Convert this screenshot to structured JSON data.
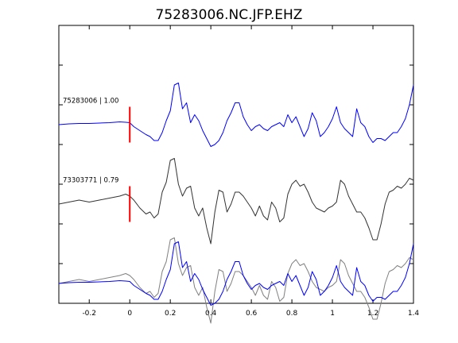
{
  "chart_data": {
    "type": "line",
    "title": "75283006.NC.JFP.EHZ",
    "xlabel": "",
    "ylabel": "",
    "xlim": [
      -0.35,
      1.4
    ],
    "xticks": [
      -0.2,
      0,
      0.2,
      0.4,
      0.6,
      0.8,
      1,
      1.2,
      1.4
    ],
    "xtick_labels": [
      "-0.2",
      "0",
      "0.2",
      "0.4",
      "0.6",
      "0.8",
      "1",
      "1.2",
      "1.4"
    ],
    "ylim": [
      -4.5,
      2.5
    ],
    "yticks": [
      -3.5,
      -2.5,
      -1.5,
      -0.5,
      0.5,
      1.5
    ],
    "grid": false,
    "pick_time": 0,
    "pick_color": "#ff0000",
    "panels": [
      {
        "offset": 0,
        "label": "75283006 | 1.00",
        "series": [
          {
            "name": "75283006",
            "color": "#0000ff",
            "x": [
              -0.35,
              -0.3,
              -0.25,
              -0.2,
              -0.15,
              -0.1,
              -0.05,
              -0.02,
              0.0,
              0.02,
              0.05,
              0.08,
              0.1,
              0.12,
              0.14,
              0.16,
              0.18,
              0.2,
              0.22,
              0.24,
              0.26,
              0.28,
              0.3,
              0.32,
              0.34,
              0.36,
              0.38,
              0.4,
              0.42,
              0.44,
              0.46,
              0.48,
              0.5,
              0.52,
              0.54,
              0.56,
              0.58,
              0.6,
              0.62,
              0.64,
              0.66,
              0.68,
              0.7,
              0.72,
              0.74,
              0.76,
              0.78,
              0.8,
              0.82,
              0.84,
              0.86,
              0.88,
              0.9,
              0.92,
              0.94,
              0.96,
              0.98,
              1.0,
              1.02,
              1.04,
              1.06,
              1.08,
              1.1,
              1.12,
              1.14,
              1.16,
              1.18,
              1.2,
              1.22,
              1.24,
              1.26,
              1.28,
              1.3,
              1.32,
              1.34,
              1.36,
              1.38,
              1.4
            ],
            "y": [
              0.0,
              0.02,
              0.03,
              0.03,
              0.04,
              0.05,
              0.07,
              0.06,
              0.05,
              -0.05,
              -0.15,
              -0.25,
              -0.3,
              -0.4,
              -0.4,
              -0.2,
              0.1,
              0.35,
              1.0,
              1.05,
              0.4,
              0.55,
              0.05,
              0.25,
              0.1,
              -0.15,
              -0.35,
              -0.55,
              -0.5,
              -0.4,
              -0.2,
              0.1,
              0.3,
              0.55,
              0.55,
              0.2,
              0.0,
              -0.15,
              -0.05,
              0.0,
              -0.1,
              -0.15,
              -0.05,
              0.0,
              0.05,
              -0.05,
              0.25,
              0.05,
              0.2,
              -0.05,
              -0.3,
              -0.1,
              0.3,
              0.1,
              -0.3,
              -0.2,
              -0.05,
              0.15,
              0.45,
              0.05,
              -0.1,
              -0.2,
              -0.3,
              0.4,
              0.05,
              -0.05,
              -0.3,
              -0.45,
              -0.35,
              -0.35,
              -0.4,
              -0.3,
              -0.2,
              -0.2,
              -0.05,
              0.15,
              0.5,
              1.0
            ]
          }
        ]
      },
      {
        "offset": -2,
        "label": "73303771 | 0.79",
        "series": [
          {
            "name": "73303771",
            "color": "#333333",
            "x": [
              -0.35,
              -0.3,
              -0.25,
              -0.2,
              -0.15,
              -0.1,
              -0.05,
              -0.02,
              0.0,
              0.02,
              0.05,
              0.08,
              0.1,
              0.12,
              0.14,
              0.16,
              0.18,
              0.2,
              0.22,
              0.24,
              0.26,
              0.28,
              0.3,
              0.32,
              0.34,
              0.36,
              0.38,
              0.4,
              0.42,
              0.44,
              0.46,
              0.48,
              0.5,
              0.52,
              0.54,
              0.56,
              0.58,
              0.6,
              0.62,
              0.64,
              0.66,
              0.68,
              0.7,
              0.72,
              0.74,
              0.76,
              0.78,
              0.8,
              0.82,
              0.84,
              0.86,
              0.88,
              0.9,
              0.92,
              0.94,
              0.96,
              0.98,
              1.0,
              1.02,
              1.04,
              1.06,
              1.08,
              1.1,
              1.12,
              1.14,
              1.16,
              1.18,
              1.2,
              1.22,
              1.24,
              1.26,
              1.28,
              1.3,
              1.32,
              1.34,
              1.36,
              1.38,
              1.4
            ],
            "y": [
              0.0,
              0.05,
              0.1,
              0.05,
              0.1,
              0.15,
              0.2,
              0.25,
              0.2,
              0.1,
              -0.1,
              -0.25,
              -0.2,
              -0.35,
              -0.25,
              0.3,
              0.55,
              1.1,
              1.15,
              0.5,
              0.2,
              0.4,
              0.45,
              -0.1,
              -0.3,
              -0.1,
              -0.6,
              -1.0,
              -0.2,
              0.35,
              0.3,
              -0.2,
              0.0,
              0.3,
              0.3,
              0.2,
              0.05,
              -0.1,
              -0.3,
              -0.05,
              -0.3,
              -0.4,
              0.05,
              -0.1,
              -0.45,
              -0.35,
              0.25,
              0.5,
              0.6,
              0.45,
              0.5,
              0.3,
              0.05,
              -0.1,
              -0.15,
              -0.2,
              -0.1,
              -0.05,
              0.05,
              0.6,
              0.5,
              0.2,
              0.0,
              -0.2,
              -0.2,
              -0.35,
              -0.6,
              -0.9,
              -0.9,
              -0.5,
              0.0,
              0.3,
              0.35,
              0.45,
              0.4,
              0.5,
              0.65,
              0.6
            ]
          }
        ]
      },
      {
        "offset": -4,
        "label": "",
        "series": [
          {
            "name": "73303771",
            "color": "#808080",
            "x": [
              -0.35,
              -0.3,
              -0.25,
              -0.2,
              -0.15,
              -0.1,
              -0.05,
              -0.02,
              0.0,
              0.02,
              0.05,
              0.08,
              0.1,
              0.12,
              0.14,
              0.16,
              0.18,
              0.2,
              0.22,
              0.24,
              0.26,
              0.28,
              0.3,
              0.32,
              0.34,
              0.36,
              0.38,
              0.4,
              0.42,
              0.44,
              0.46,
              0.48,
              0.5,
              0.52,
              0.54,
              0.56,
              0.58,
              0.6,
              0.62,
              0.64,
              0.66,
              0.68,
              0.7,
              0.72,
              0.74,
              0.76,
              0.78,
              0.8,
              0.82,
              0.84,
              0.86,
              0.88,
              0.9,
              0.92,
              0.94,
              0.96,
              0.98,
              1.0,
              1.02,
              1.04,
              1.06,
              1.08,
              1.1,
              1.12,
              1.14,
              1.16,
              1.18,
              1.2,
              1.22,
              1.24,
              1.26,
              1.28,
              1.3,
              1.32,
              1.34,
              1.36,
              1.38,
              1.4
            ],
            "y": [
              0.0,
              0.05,
              0.1,
              0.05,
              0.1,
              0.15,
              0.2,
              0.25,
              0.2,
              0.1,
              -0.1,
              -0.25,
              -0.2,
              -0.35,
              -0.25,
              0.3,
              0.55,
              1.1,
              1.15,
              0.5,
              0.2,
              0.4,
              0.45,
              -0.1,
              -0.3,
              -0.1,
              -0.6,
              -1.0,
              -0.2,
              0.35,
              0.3,
              -0.2,
              0.0,
              0.3,
              0.3,
              0.2,
              0.05,
              -0.1,
              -0.3,
              -0.05,
              -0.3,
              -0.4,
              0.05,
              -0.1,
              -0.45,
              -0.35,
              0.25,
              0.5,
              0.6,
              0.45,
              0.5,
              0.3,
              0.05,
              -0.1,
              -0.15,
              -0.2,
              -0.1,
              -0.05,
              0.05,
              0.6,
              0.5,
              0.2,
              0.0,
              -0.2,
              -0.2,
              -0.35,
              -0.6,
              -0.9,
              -0.9,
              -0.5,
              0.0,
              0.3,
              0.35,
              0.45,
              0.4,
              0.5,
              0.65,
              0.6
            ]
          },
          {
            "name": "75283006",
            "color": "#0000ff",
            "x": [
              -0.35,
              -0.3,
              -0.25,
              -0.2,
              -0.15,
              -0.1,
              -0.05,
              -0.02,
              0.0,
              0.02,
              0.05,
              0.08,
              0.1,
              0.12,
              0.14,
              0.16,
              0.18,
              0.2,
              0.22,
              0.24,
              0.26,
              0.28,
              0.3,
              0.32,
              0.34,
              0.36,
              0.38,
              0.4,
              0.42,
              0.44,
              0.46,
              0.48,
              0.5,
              0.52,
              0.54,
              0.56,
              0.58,
              0.6,
              0.62,
              0.64,
              0.66,
              0.68,
              0.7,
              0.72,
              0.74,
              0.76,
              0.78,
              0.8,
              0.82,
              0.84,
              0.86,
              0.88,
              0.9,
              0.92,
              0.94,
              0.96,
              0.98,
              1.0,
              1.02,
              1.04,
              1.06,
              1.08,
              1.1,
              1.12,
              1.14,
              1.16,
              1.18,
              1.2,
              1.22,
              1.24,
              1.26,
              1.28,
              1.3,
              1.32,
              1.34,
              1.36,
              1.38,
              1.4
            ],
            "y": [
              0.0,
              0.02,
              0.03,
              0.03,
              0.04,
              0.05,
              0.07,
              0.06,
              0.05,
              -0.05,
              -0.15,
              -0.25,
              -0.3,
              -0.4,
              -0.4,
              -0.2,
              0.1,
              0.35,
              1.0,
              1.05,
              0.4,
              0.55,
              0.05,
              0.25,
              0.1,
              -0.15,
              -0.35,
              -0.55,
              -0.5,
              -0.4,
              -0.2,
              0.1,
              0.3,
              0.55,
              0.55,
              0.2,
              0.0,
              -0.15,
              -0.05,
              0.0,
              -0.1,
              -0.15,
              -0.05,
              0.0,
              0.05,
              -0.05,
              0.25,
              0.05,
              0.2,
              -0.05,
              -0.3,
              -0.1,
              0.3,
              0.1,
              -0.3,
              -0.2,
              -0.05,
              0.15,
              0.45,
              0.05,
              -0.1,
              -0.2,
              -0.3,
              0.4,
              0.05,
              -0.05,
              -0.3,
              -0.45,
              -0.35,
              -0.35,
              -0.4,
              -0.3,
              -0.2,
              -0.2,
              -0.05,
              0.15,
              0.5,
              1.0
            ]
          }
        ]
      }
    ]
  }
}
